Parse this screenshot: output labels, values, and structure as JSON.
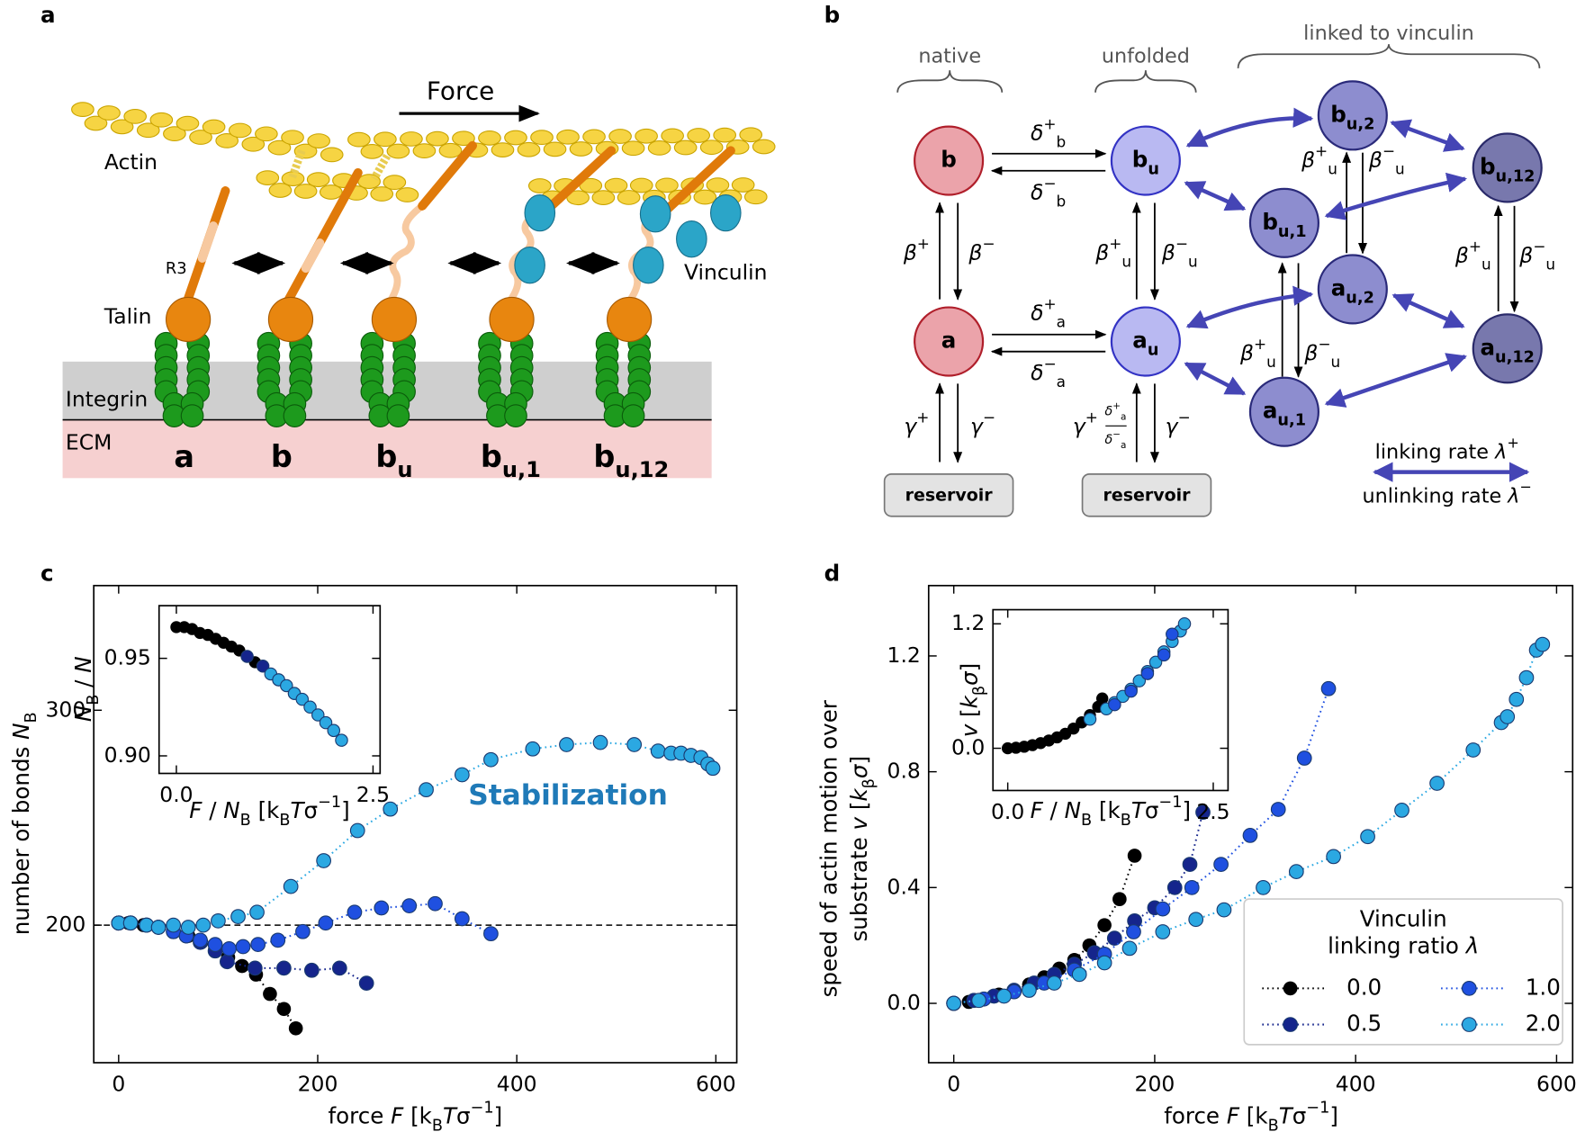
{
  "diagram_a": {
    "panel_label": "a",
    "force": "Force",
    "labels": {
      "actin": "Actin",
      "r3": "R3",
      "talin": "Talin",
      "vinculin": "Vinculin",
      "integrin": "Integrin",
      "ecm": "ECM"
    },
    "states": [
      "a",
      "b",
      "b_{u}",
      "b_{u,1}",
      "b_{u,12}"
    ]
  },
  "diagram_b": {
    "panel_label": "b",
    "groups": [
      "native",
      "unfolded",
      "linked to vinculin"
    ],
    "nodes": {
      "b": "b",
      "bu": "b_{u}",
      "bu2": "b_{u,2}",
      "bu1": "b_{u,1}",
      "bu12": "b_{u,12}",
      "a": "a",
      "au": "a_{u}",
      "au2": "a_{u,2}",
      "au1": "a_{u,1}",
      "au12": "a_{u,12}"
    },
    "rates": {
      "db_plus": "*δ*^{+}_{b}",
      "db_minus": "*δ*^{−}_{b}",
      "da_plus": "*δ*^{+}_{a}",
      "da_minus": "*δ*^{−}_{a}",
      "beta_plus": "*β*^{+}",
      "beta_minus": "*β*^{−}",
      "betau_plus": "*β*^{+}_{u}",
      "betau_minus": "*β*^{−}_{u}",
      "gamma_plus": "*γ*^{+}",
      "gamma_minus": "*γ*^{−}",
      "frac_num": "*δ*^{+}_{a}",
      "frac_den": "*δ*^{−}_{a}"
    },
    "reservoir": "reservoir",
    "legend": [
      "linking rate *λ*^{+}",
      "unlinking rate *λ*^{−}"
    ]
  },
  "chart_data": [
    {
      "type": "line",
      "panel_label": "c",
      "xlabel": "force  *F*  [k_{B}*T*σ^{−1}]",
      "ylabel": "number of bonds *N*_{B}",
      "xlim": [
        -25,
        621
      ],
      "ylim": [
        136,
        358
      ],
      "xticks": [
        0,
        200,
        400,
        600
      ],
      "yticks": [
        200,
        300
      ],
      "hline": 200,
      "annotation": "Stabilization",
      "annotation_color": "#1f7ab8",
      "lines": true,
      "series": [
        {
          "color": "#000000",
          "x": [
            0,
            10,
            25,
            40,
            55,
            70,
            83,
            97,
            110,
            124,
            138,
            152,
            166,
            178
          ],
          "values": [
            201,
            201,
            200,
            199,
            197,
            195,
            192,
            189,
            185,
            181,
            177,
            168,
            161,
            152
          ]
        },
        {
          "color": "#15258c",
          "x": [
            0,
            12,
            28,
            40,
            55,
            68,
            82,
            97,
            109,
            137,
            166,
            194,
            222,
            249
          ],
          "values": [
            201,
            201,
            200,
            199,
            197,
            195,
            192,
            188,
            183,
            180,
            180,
            179,
            180,
            173
          ]
        },
        {
          "color": "#1f50e0",
          "x": [
            0,
            12,
            28,
            40,
            55,
            68,
            82,
            97,
            111,
            125,
            140,
            160,
            185,
            208,
            237,
            264,
            292,
            318,
            345,
            374
          ],
          "values": [
            201,
            201,
            200,
            199,
            197,
            195,
            193,
            191,
            189,
            190,
            191,
            193,
            197,
            201,
            206,
            208,
            209,
            210,
            203,
            196
          ]
        },
        {
          "color": "#2ba8e2",
          "x": [
            0,
            12,
            28,
            40,
            55,
            70,
            85,
            100,
            120,
            139,
            173,
            206,
            240,
            273,
            309,
            345,
            374,
            416,
            450,
            484,
            518,
            542,
            555,
            565,
            575,
            585,
            592,
            597
          ],
          "values": [
            201,
            201,
            200,
            199,
            200,
            199,
            200,
            202,
            204,
            206,
            218,
            230,
            244,
            254,
            263,
            270,
            277,
            282,
            284,
            285,
            284,
            281,
            280,
            280,
            279,
            278,
            275,
            273
          ]
        }
      ]
    },
    {
      "type": "line",
      "xlabel": "*F* / *N*_{B}  [k_{B}*T*σ^{−1}]",
      "ylabel": "*N*_{B} / *N*",
      "xlim": [
        -0.22,
        2.59
      ],
      "ylim": [
        0.891,
        0.977
      ],
      "xticks": [
        {
          "value": 0,
          "label": "0.0"
        },
        2.5
      ],
      "yticks": [
        {
          "value": 0.9,
          "label": "0.90"
        },
        0.95
      ],
      "lines": false,
      "series": [
        {
          "color": "#000000",
          "x": [
            0,
            0.1,
            0.2,
            0.3,
            0.4,
            0.5,
            0.6,
            0.7,
            0.8,
            0.9,
            1.0,
            1.1,
            1.2
          ],
          "values": [
            0.966,
            0.966,
            0.965,
            0.963,
            0.962,
            0.96,
            0.958,
            0.956,
            0.954,
            0.951,
            0.948,
            0.946,
            0.942
          ]
        },
        {
          "color": "#15258c",
          "x": [
            0.9,
            1.1,
            1.3,
            1.5
          ],
          "values": [
            0.951,
            0.946,
            0.939,
            0.932
          ]
        },
        {
          "color": "#2ba8e2",
          "x": [
            1.2,
            1.3,
            1.4,
            1.5,
            1.6,
            1.7,
            1.8,
            1.9,
            2.0,
            2.1
          ],
          "values": [
            0.942,
            0.939,
            0.936,
            0.932,
            0.929,
            0.925,
            0.921,
            0.917,
            0.913,
            0.908
          ]
        }
      ]
    },
    {
      "type": "line",
      "panel_label": "d",
      "xlabel": "force  *F*  [k_{B}*T*σ^{−1}]",
      "ylabel": [
        "speed of actin motion over",
        "substrate  *v*  [*k*_{β}*σ*]"
      ],
      "xlim": [
        -25,
        616
      ],
      "ylim": [
        -0.205,
        1.443
      ],
      "xticks": [
        0,
        200,
        400,
        600
      ],
      "yticks": [
        {
          "value": 0,
          "label": "0.0"
        },
        0.4,
        0.8,
        1.2
      ],
      "lines": true,
      "legend": "lower right",
      "legend_title": [
        "Vinculin",
        "linking ratio *λ*"
      ],
      "series": [
        {
          "name": "0.0",
          "color": "#000000",
          "x": [
            0,
            15,
            30,
            45,
            60,
            75,
            90,
            105,
            120,
            135,
            150,
            165,
            180
          ],
          "values": [
            0,
            0.005,
            0.015,
            0.03,
            0.045,
            0.065,
            0.09,
            0.12,
            0.15,
            0.2,
            0.27,
            0.36,
            0.51
          ]
        },
        {
          "name": "0.5",
          "color": "#15258c",
          "x": [
            0,
            20,
            40,
            60,
            80,
            100,
            120,
            140,
            160,
            180,
            200,
            220,
            235,
            248
          ],
          "values": [
            0,
            0.01,
            0.025,
            0.045,
            0.07,
            0.1,
            0.135,
            0.175,
            0.225,
            0.285,
            0.33,
            0.4,
            0.48,
            0.66
          ]
        },
        {
          "name": "1.0",
          "color": "#1f50e0",
          "x": [
            0,
            30,
            60,
            90,
            120,
            150,
            179,
            208,
            237,
            266,
            295,
            323,
            349,
            373
          ],
          "values": [
            0,
            0.015,
            0.04,
            0.07,
            0.115,
            0.17,
            0.247,
            0.326,
            0.4,
            0.48,
            0.58,
            0.67,
            0.847,
            1.087
          ]
        },
        {
          "name": "2.0",
          "color": "#2ba8e2",
          "x": [
            0,
            25,
            50,
            75,
            100,
            125,
            150,
            175,
            208,
            241,
            269,
            308,
            341,
            378,
            412,
            446,
            481,
            517,
            545,
            551,
            560,
            570,
            580,
            586
          ],
          "values": [
            0,
            0.01,
            0.025,
            0.045,
            0.07,
            0.1,
            0.14,
            0.19,
            0.247,
            0.29,
            0.323,
            0.4,
            0.455,
            0.507,
            0.576,
            0.667,
            0.76,
            0.875,
            0.97,
            0.99,
            1.05,
            1.125,
            1.22,
            1.24
          ]
        }
      ]
    },
    {
      "type": "line",
      "xlabel": "*F* / *N*_{B}  [k_{B}*T*σ^{−1}]",
      "ylabel": "*v*  [*k*_{β}*σ*]",
      "xlim": [
        -0.18,
        2.68
      ],
      "ylim": [
        -0.407,
        1.336
      ],
      "xticks": [
        {
          "value": 0,
          "label": "0.0"
        },
        2.5
      ],
      "yticks": [
        {
          "value": 0,
          "label": "0.0"
        },
        1.2
      ],
      "lines": false,
      "series": [
        {
          "color": "#000000",
          "x": [
            0,
            0.1,
            0.2,
            0.3,
            0.4,
            0.5,
            0.6,
            0.7,
            0.8,
            0.9,
            1.0,
            1.1,
            1.15
          ],
          "values": [
            0,
            0.005,
            0.015,
            0.03,
            0.05,
            0.075,
            0.105,
            0.14,
            0.19,
            0.25,
            0.32,
            0.4,
            0.48
          ]
        },
        {
          "color": "#2ba8e2",
          "x": [
            1.0,
            1.2,
            1.3,
            1.4,
            1.5,
            1.6,
            1.7,
            1.8,
            1.9,
            2.0,
            2.1,
            2.15
          ],
          "values": [
            0.28,
            0.38,
            0.44,
            0.5,
            0.57,
            0.65,
            0.74,
            0.83,
            0.93,
            1.03,
            1.13,
            1.2
          ]
        },
        {
          "color": "#1f50e0",
          "x": [
            1.3,
            1.5,
            1.7,
            1.9,
            2.0
          ],
          "values": [
            0.42,
            0.55,
            0.72,
            0.9,
            1.1
          ]
        }
      ]
    }
  ]
}
